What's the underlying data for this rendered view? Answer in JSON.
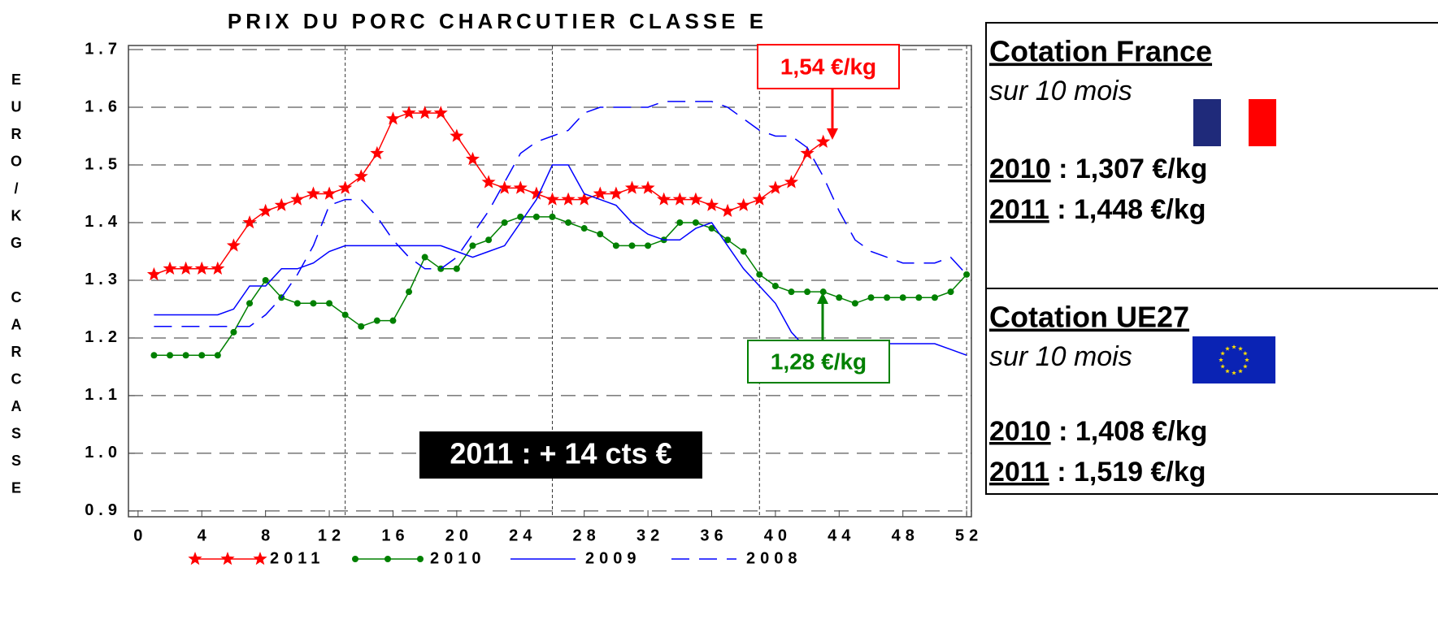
{
  "chart_data": {
    "type": "line",
    "title": "PRIX DU PORC CHARCUTIER CLASSE E",
    "y_label": "EURO/KG CARCASSE",
    "x": [
      1,
      2,
      3,
      4,
      5,
      6,
      7,
      8,
      9,
      10,
      11,
      12,
      13,
      14,
      15,
      16,
      17,
      18,
      19,
      20,
      21,
      22,
      23,
      24,
      25,
      26,
      27,
      28,
      29,
      30,
      31,
      32,
      33,
      34,
      35,
      36,
      37,
      38,
      39,
      40,
      41,
      42,
      43,
      44,
      45,
      46,
      47,
      48,
      49,
      50,
      51,
      52
    ],
    "xlim": [
      -0.4,
      52.3
    ],
    "xticks": [
      0,
      4,
      8,
      12,
      16,
      20,
      24,
      28,
      32,
      36,
      40,
      44,
      48,
      52
    ],
    "ylim": [
      0.89,
      1.7
    ],
    "yticks": [
      0.9,
      {
        "value": 1,
        "label": "1.0"
      },
      1.1,
      1.2,
      1.3,
      1.4,
      1.5,
      1.6,
      1.7
    ],
    "xgrid_lines": [
      13,
      26,
      39,
      52
    ],
    "grid": true,
    "series": [
      {
        "name": "2011",
        "color": "#ff0000",
        "marker": "star",
        "dashed": false,
        "values": [
          1.31,
          1.32,
          1.32,
          1.32,
          1.32,
          1.36,
          1.4,
          1.42,
          1.43,
          1.44,
          1.45,
          1.45,
          1.46,
          1.48,
          1.52,
          1.58,
          1.59,
          1.59,
          1.59,
          1.55,
          1.51,
          1.47,
          1.46,
          1.46,
          1.45,
          1.44,
          1.44,
          1.44,
          1.45,
          1.45,
          1.46,
          1.46,
          1.44,
          1.44,
          1.44,
          1.43,
          1.42,
          1.43,
          1.44,
          1.46,
          1.47,
          1.52,
          1.54,
          null,
          null,
          null,
          null,
          null,
          null,
          null,
          null,
          null
        ]
      },
      {
        "name": "2010",
        "color": "#008000",
        "marker": "dot",
        "dashed": false,
        "values": [
          1.17,
          1.17,
          1.17,
          1.17,
          1.17,
          1.21,
          1.26,
          1.3,
          1.27,
          1.26,
          1.26,
          1.26,
          1.24,
          1.22,
          1.23,
          1.23,
          1.28,
          1.34,
          1.32,
          1.32,
          1.36,
          1.37,
          1.4,
          1.41,
          1.41,
          1.41,
          1.4,
          1.39,
          1.38,
          1.36,
          1.36,
          1.36,
          1.37,
          1.4,
          1.4,
          1.39,
          1.37,
          1.35,
          1.31,
          1.29,
          1.28,
          1.28,
          1.28,
          1.27,
          1.26,
          1.27,
          1.27,
          1.27,
          1.27,
          1.27,
          1.28,
          1.31
        ]
      },
      {
        "name": "2009",
        "color": "#0000ff",
        "marker": "none",
        "dashed": false,
        "values": [
          1.24,
          1.24,
          1.24,
          1.24,
          1.24,
          1.25,
          1.29,
          1.29,
          1.32,
          1.32,
          1.33,
          1.35,
          1.36,
          1.36,
          1.36,
          1.36,
          1.36,
          1.36,
          1.36,
          1.35,
          1.34,
          1.35,
          1.36,
          1.4,
          1.44,
          1.5,
          1.5,
          1.45,
          1.44,
          1.43,
          1.4,
          1.38,
          1.37,
          1.37,
          1.39,
          1.4,
          1.36,
          1.32,
          1.29,
          1.26,
          1.21,
          1.18,
          1.18,
          1.17,
          1.18,
          1.19,
          1.19,
          1.19,
          1.19,
          1.19,
          1.18,
          1.17
        ]
      },
      {
        "name": "2008",
        "color": "#0000ff",
        "marker": "none",
        "dashed": true,
        "values": [
          1.22,
          1.22,
          1.22,
          1.22,
          1.22,
          1.22,
          1.22,
          1.24,
          1.27,
          1.31,
          1.36,
          1.43,
          1.44,
          1.44,
          1.41,
          1.37,
          1.34,
          1.32,
          1.32,
          1.34,
          1.38,
          1.42,
          1.47,
          1.52,
          1.54,
          1.55,
          1.56,
          1.59,
          1.6,
          1.6,
          1.6,
          1.6,
          1.61,
          1.61,
          1.61,
          1.61,
          1.6,
          1.58,
          1.56,
          1.55,
          1.55,
          1.53,
          1.48,
          1.42,
          1.37,
          1.35,
          1.34,
          1.33,
          1.33,
          1.33,
          1.34,
          1.31
        ]
      }
    ],
    "annotations": [
      {
        "text": "1,54 €/kg",
        "color": "#ff0000"
      },
      {
        "text": "1,28 €/kg",
        "color": "#008000"
      },
      {
        "text": "2011 : + 14 cts €",
        "color": "#000000"
      }
    ]
  },
  "panels": [
    {
      "title": "Cotation France",
      "subtitle": "sur 10 mois",
      "rows": [
        {
          "year": "2010",
          "text": " : 1,307 €/kg"
        },
        {
          "year": "2011",
          "text": " : 1,448 €/kg"
        }
      ]
    },
    {
      "title": "Cotation UE27",
      "subtitle": "sur 10 mois",
      "rows": [
        {
          "year": "2010",
          "text": " : 1,408 €/kg"
        },
        {
          "year": "2011",
          "text": " : 1,519 €/kg"
        }
      ]
    }
  ]
}
